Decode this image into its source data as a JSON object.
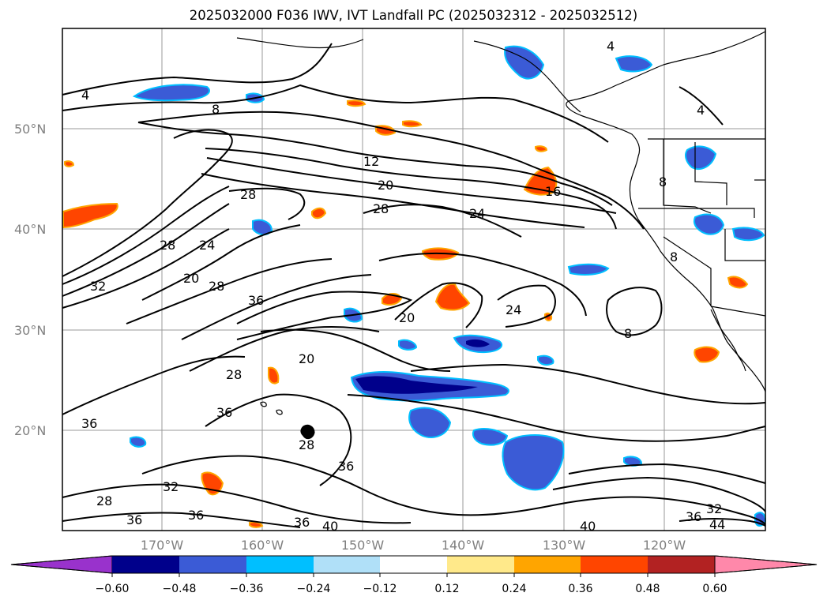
{
  "title": "2025032000 F036 IWV, IVT Landfall PC (2025032312 - 2025032512)",
  "lat_labels": [
    "50°N",
    "40°N",
    "30°N",
    "20°N"
  ],
  "lon_labels": [
    "170°W",
    "160°W",
    "150°W",
    "140°W",
    "130°W",
    "120°W"
  ],
  "contour_labels": [
    "4",
    "4",
    "4",
    "8",
    "8",
    "8",
    "8",
    "12",
    "16",
    "20",
    "20",
    "20",
    "20",
    "24",
    "24",
    "24",
    "28",
    "28",
    "28",
    "28",
    "28",
    "28",
    "28",
    "32",
    "32",
    "32",
    "36",
    "36",
    "36",
    "36",
    "36",
    "36",
    "36",
    "36",
    "40",
    "40",
    "44"
  ],
  "colorbar": {
    "ticks": [
      "−0.60",
      "−0.48",
      "−0.36",
      "−0.24",
      "−0.12",
      "0.12",
      "0.24",
      "0.36",
      "0.48",
      "0.60"
    ],
    "colors": [
      "#9932cc",
      "#00008b",
      "#3b5bd6",
      "#00bfff",
      "#b0e0f8",
      "#ffffff",
      "#ffe98a",
      "#ffa500",
      "#ff4500",
      "#b22222",
      "#ff88aa"
    ]
  }
}
